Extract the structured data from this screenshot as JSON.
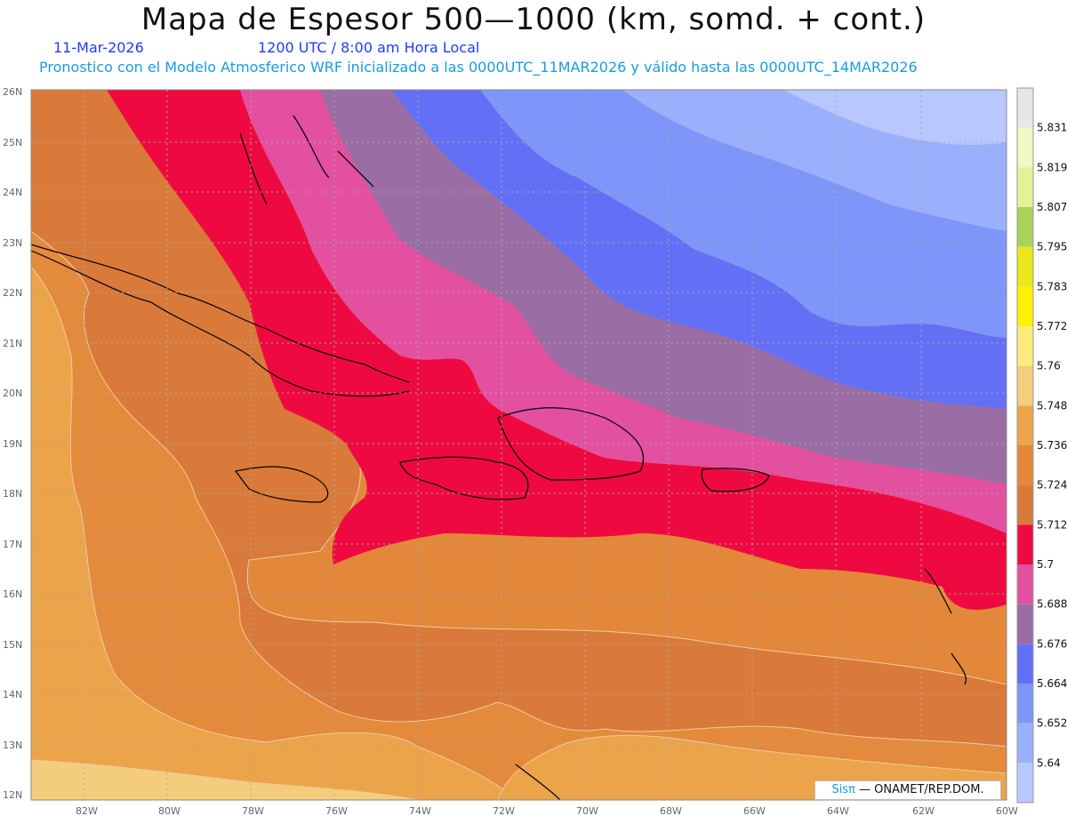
{
  "header": {
    "title": "Mapa de Espesor 500—1000 (km, somd. + cont.)",
    "date": "11-Mar-2026",
    "time": "1200 UTC / 8:00 am Hora Local",
    "description": "Pronostico con el Modelo Atmosferico WRF inicializado a las 0000UTC_11MAR2026 y válido hasta las  0000UTC_14MAR2026"
  },
  "axes": {
    "lat_labels": [
      "26N",
      "25N",
      "24N",
      "23N",
      "22N",
      "21N",
      "20N",
      "19N",
      "18N",
      "17N",
      "16N",
      "15N",
      "14N",
      "13N",
      "12N"
    ],
    "lon_labels": [
      "82W",
      "80W",
      "78W",
      "76W",
      "74W",
      "72W",
      "70W",
      "68W",
      "66W",
      "64W",
      "62W",
      "60W"
    ]
  },
  "legend": {
    "levels": [
      "5.831",
      "5.819",
      "5.807",
      "5.795",
      "5.783",
      "5.772",
      "5.76",
      "5.748",
      "5.736",
      "5.724",
      "5.712",
      "5.7",
      "5.688",
      "5.676",
      "5.664",
      "5.652",
      "5.64"
    ],
    "colors": [
      "#e6e6e6",
      "#f3f7c6",
      "#e2f397",
      "#a9d25a",
      "#e8e81b",
      "#fdf000",
      "#fdeb7d",
      "#f3cd7c",
      "#eba44a",
      "#e3873a",
      "#d97a3a",
      "#ee0a40",
      "#e350a0",
      "#9a6da5",
      "#6370f5",
      "#7e96fa",
      "#9ab0fd",
      "#b8c8fe"
    ]
  },
  "credit": {
    "sis": "Sisπ",
    "org": " — ONAMET/REP.DOM."
  }
}
